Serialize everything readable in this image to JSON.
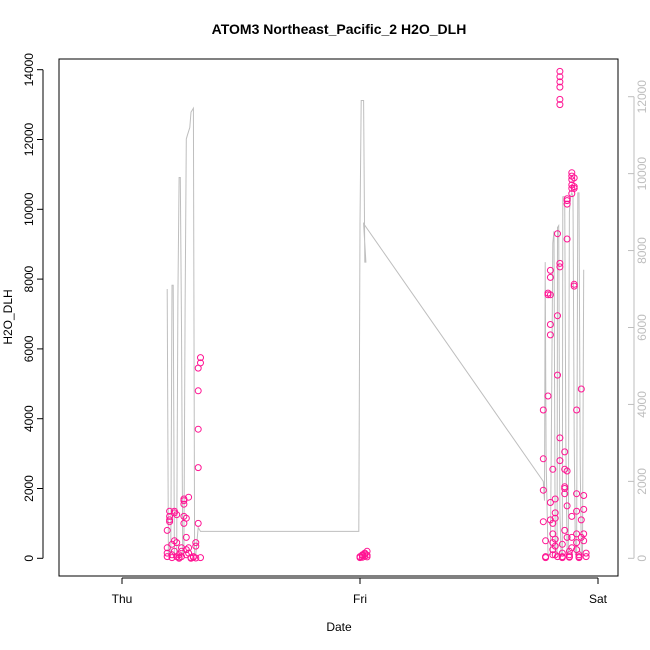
{
  "chart_data": {
    "type": "scatter",
    "title": "ATOM3 Northeast_Pacific_2 H2O_DLH",
    "xlabel": "Date",
    "ylabel": "H2O_DLH",
    "x_ticks": [
      "Thu",
      "Fri",
      "Sat"
    ],
    "x_range_days": [
      -1.83,
      0.05
    ],
    "ylim": [
      0,
      14000
    ],
    "y_ticks": [
      0,
      2000,
      4000,
      6000,
      8000,
      10000,
      12000,
      14000
    ],
    "y2lim": [
      0,
      12000
    ],
    "y2_ticks": [
      0,
      2000,
      4000,
      6000,
      8000,
      10000,
      12000
    ],
    "grid": false,
    "legend": "none",
    "colors": {
      "points": "#ff1493",
      "line": "#bebebe",
      "axis": "#000000",
      "axis2": "#bebebe"
    },
    "series": [
      {
        "kind": "points",
        "axis": "left",
        "points": [
          [
            -1.81,
            50
          ],
          [
            -1.81,
            150
          ],
          [
            -1.81,
            300
          ],
          [
            -1.81,
            800
          ],
          [
            -1.8,
            1050
          ],
          [
            -1.8,
            1200
          ],
          [
            -1.8,
            1350
          ],
          [
            -1.8,
            1100
          ],
          [
            -1.79,
            100
          ],
          [
            -1.79,
            400
          ],
          [
            -1.79,
            20
          ],
          [
            -1.78,
            200
          ],
          [
            -1.78,
            500
          ],
          [
            -1.78,
            1300
          ],
          [
            -1.78,
            1350
          ],
          [
            -1.77,
            1250
          ],
          [
            -1.77,
            50
          ],
          [
            -1.77,
            450
          ],
          [
            -1.76,
            30
          ],
          [
            -1.76,
            0
          ],
          [
            -1.76,
            100
          ],
          [
            -1.75,
            50
          ],
          [
            -1.75,
            300
          ],
          [
            -1.75,
            200
          ],
          [
            -1.74,
            1700
          ],
          [
            -1.74,
            1650
          ],
          [
            -1.74,
            1550
          ],
          [
            -1.74,
            1200
          ],
          [
            -1.74,
            1000
          ],
          [
            -1.73,
            600
          ],
          [
            -1.73,
            250
          ],
          [
            -1.73,
            100
          ],
          [
            -1.73,
            1150
          ],
          [
            -1.72,
            1750
          ],
          [
            -1.72,
            300
          ],
          [
            -1.72,
            150
          ],
          [
            -1.71,
            20
          ],
          [
            -1.71,
            0
          ],
          [
            -1.7,
            50
          ],
          [
            -1.7,
            30
          ],
          [
            -1.69,
            10
          ],
          [
            -1.69,
            350
          ],
          [
            -1.69,
            450
          ],
          [
            -1.68,
            1000
          ],
          [
            -1.68,
            2600
          ],
          [
            -1.68,
            3700
          ],
          [
            -1.68,
            4800
          ],
          [
            -1.68,
            5450
          ],
          [
            -1.67,
            5600
          ],
          [
            -1.67,
            5750
          ],
          [
            -1.67,
            20
          ],
          [
            -1.0,
            20
          ],
          [
            -1.0,
            50
          ],
          [
            -0.99,
            80
          ],
          [
            -0.99,
            100
          ],
          [
            -0.99,
            30
          ],
          [
            -0.98,
            120
          ],
          [
            -0.98,
            60
          ],
          [
            -0.98,
            150
          ],
          [
            -0.97,
            200
          ],
          [
            -0.97,
            90
          ],
          [
            -0.97,
            40
          ],
          [
            -0.23,
            4250
          ],
          [
            -0.23,
            2850
          ],
          [
            -0.23,
            1950
          ],
          [
            -0.23,
            1050
          ],
          [
            -0.22,
            500
          ],
          [
            -0.22,
            50
          ],
          [
            -0.22,
            20
          ],
          [
            -0.21,
            4650
          ],
          [
            -0.21,
            7550
          ],
          [
            -0.21,
            7600
          ],
          [
            -0.2,
            8050
          ],
          [
            -0.2,
            8250
          ],
          [
            -0.2,
            7550
          ],
          [
            -0.2,
            6400
          ],
          [
            -0.2,
            6700
          ],
          [
            -0.2,
            1600
          ],
          [
            -0.2,
            1100
          ],
          [
            -0.19,
            2550
          ],
          [
            -0.19,
            1000
          ],
          [
            -0.19,
            700
          ],
          [
            -0.19,
            450
          ],
          [
            -0.19,
            250
          ],
          [
            -0.19,
            100
          ],
          [
            -0.18,
            1300
          ],
          [
            -0.18,
            1700
          ],
          [
            -0.18,
            1150
          ],
          [
            -0.18,
            550
          ],
          [
            -0.18,
            350
          ],
          [
            -0.17,
            5250
          ],
          [
            -0.17,
            6950
          ],
          [
            -0.17,
            9300
          ],
          [
            -0.16,
            13000
          ],
          [
            -0.16,
            13150
          ],
          [
            -0.16,
            13500
          ],
          [
            -0.16,
            13650
          ],
          [
            -0.16,
            13800
          ],
          [
            -0.16,
            13950
          ],
          [
            -0.16,
            8450
          ],
          [
            -0.16,
            8350
          ],
          [
            -0.16,
            3450
          ],
          [
            -0.16,
            2800
          ],
          [
            -0.15,
            400
          ],
          [
            -0.15,
            150
          ],
          [
            -0.15,
            50
          ],
          [
            -0.15,
            20
          ],
          [
            -0.14,
            800
          ],
          [
            -0.14,
            1850
          ],
          [
            -0.14,
            2050
          ],
          [
            -0.14,
            2000
          ],
          [
            -0.14,
            2550
          ],
          [
            -0.14,
            3050
          ],
          [
            -0.13,
            9150
          ],
          [
            -0.13,
            10150
          ],
          [
            -0.13,
            10250
          ],
          [
            -0.13,
            10300
          ],
          [
            -0.13,
            2500
          ],
          [
            -0.13,
            1500
          ],
          [
            -0.13,
            600
          ],
          [
            -0.12,
            200
          ],
          [
            -0.12,
            100
          ],
          [
            -0.12,
            50
          ],
          [
            -0.12,
            30
          ],
          [
            -0.11,
            300
          ],
          [
            -0.11,
            600
          ],
          [
            -0.11,
            1200
          ],
          [
            -0.11,
            10450
          ],
          [
            -0.11,
            10600
          ],
          [
            -0.11,
            10700
          ],
          [
            -0.11,
            10850
          ],
          [
            -0.11,
            10950
          ],
          [
            -0.11,
            11050
          ],
          [
            -0.1,
            10650
          ],
          [
            -0.1,
            10900
          ],
          [
            -0.1,
            10600
          ],
          [
            -0.1,
            7800
          ],
          [
            -0.1,
            7850
          ],
          [
            -0.09,
            4250
          ],
          [
            -0.09,
            1850
          ],
          [
            -0.09,
            1350
          ],
          [
            -0.09,
            700
          ],
          [
            -0.09,
            450
          ],
          [
            -0.09,
            250
          ],
          [
            -0.08,
            100
          ],
          [
            -0.08,
            50
          ],
          [
            -0.08,
            20
          ],
          [
            -0.07,
            1100
          ],
          [
            -0.07,
            600
          ],
          [
            -0.07,
            4850
          ],
          [
            -0.06,
            1800
          ],
          [
            -0.06,
            1400
          ],
          [
            -0.06,
            700
          ],
          [
            -0.06,
            500
          ],
          [
            -0.05,
            150
          ],
          [
            -0.05,
            50
          ],
          [
            -0.18,
            100
          ],
          [
            -0.17,
            50
          ]
        ]
      },
      {
        "kind": "line",
        "axis": "right",
        "points": [
          [
            -1.81,
            7000
          ],
          [
            -1.805,
            100
          ],
          [
            -1.795,
            100
          ],
          [
            -1.79,
            7100
          ],
          [
            -1.785,
            7100
          ],
          [
            -1.78,
            100
          ],
          [
            -1.77,
            100
          ],
          [
            -1.765,
            6800
          ],
          [
            -1.76,
            9900
          ],
          [
            -1.755,
            9900
          ],
          [
            -1.75,
            6000
          ],
          [
            -1.745,
            100
          ],
          [
            -1.74,
            100
          ],
          [
            -1.735,
            6500
          ],
          [
            -1.73,
            10900
          ],
          [
            -1.725,
            11000
          ],
          [
            -1.72,
            11100
          ],
          [
            -1.715,
            11200
          ],
          [
            -1.71,
            11600
          ],
          [
            -1.7,
            11700
          ],
          [
            -1.695,
            100
          ],
          [
            -1.69,
            100
          ],
          [
            -1.68,
            800
          ],
          [
            -1.67,
            700
          ],
          [
            -1.005,
            700
          ],
          [
            -1.0,
            8700
          ],
          [
            -0.995,
            11900
          ],
          [
            -0.99,
            11900
          ],
          [
            -0.985,
            11900
          ],
          [
            -0.98,
            7700
          ],
          [
            -0.975,
            7700
          ],
          [
            -0.985,
            8700
          ],
          [
            -0.23,
            2000
          ],
          [
            -0.225,
            1500
          ],
          [
            -0.222,
            7700
          ],
          [
            -0.218,
            2600
          ],
          [
            -0.21,
            100
          ],
          [
            -0.2,
            100
          ],
          [
            -0.195,
            4000
          ],
          [
            -0.19,
            8200
          ],
          [
            -0.185,
            8500
          ],
          [
            -0.18,
            100
          ],
          [
            -0.172,
            100
          ],
          [
            -0.17,
            8600
          ],
          [
            -0.165,
            8650
          ],
          [
            -0.16,
            1200
          ],
          [
            -0.155,
            100
          ],
          [
            -0.15,
            100
          ],
          [
            -0.148,
            9400
          ],
          [
            -0.14,
            9400
          ],
          [
            -0.135,
            2800
          ],
          [
            -0.13,
            100
          ],
          [
            -0.125,
            100
          ],
          [
            -0.12,
            9000
          ],
          [
            -0.115,
            9400
          ],
          [
            -0.11,
            9500
          ],
          [
            -0.105,
            9400
          ],
          [
            -0.1,
            3000
          ],
          [
            -0.095,
            100
          ],
          [
            -0.09,
            100
          ],
          [
            -0.085,
            9500
          ],
          [
            -0.08,
            9500
          ],
          [
            -0.075,
            2500
          ],
          [
            -0.07,
            100
          ],
          [
            -0.065,
            100
          ],
          [
            -0.06,
            7500
          ]
        ]
      }
    ]
  }
}
